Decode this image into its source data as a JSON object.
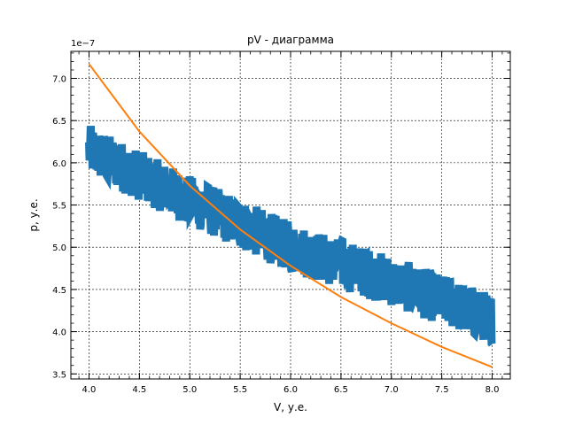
{
  "chart_data": {
    "type": "line",
    "title": "pV - диаграмма",
    "xlabel": "V, у.е.",
    "ylabel": "p, у.е.",
    "y_offset_label": "1e−7",
    "xlim": [
      3.82,
      8.18
    ],
    "ylim": [
      3.44,
      7.32
    ],
    "x_ticks": [
      4.0,
      4.5,
      5.0,
      5.5,
      6.0,
      6.5,
      7.0,
      7.5,
      8.0
    ],
    "x_tick_labels": [
      "4.0",
      "4.5",
      "5.0",
      "5.5",
      "6.0",
      "6.5",
      "7.0",
      "7.5",
      "8.0"
    ],
    "y_ticks": [
      3.5,
      4.0,
      4.5,
      5.0,
      5.5,
      6.0,
      6.5,
      7.0
    ],
    "y_tick_labels": [
      "3.5",
      "4.0",
      "4.5",
      "5.0",
      "5.5",
      "6.0",
      "6.5",
      "7.0"
    ],
    "grid": true,
    "colors": {
      "data": "#1f77b4",
      "fit": "#ff7f0e"
    },
    "series": [
      {
        "kind": "noisy-data",
        "trend": [
          [
            4.0,
            6.15
          ],
          [
            5.0,
            5.55
          ],
          [
            6.0,
            5.0
          ],
          [
            7.0,
            4.6
          ],
          [
            8.0,
            4.15
          ]
        ],
        "noise_amplitude": 0.3
      },
      {
        "kind": "fit",
        "x": [
          4.0,
          4.5,
          5.0,
          5.5,
          6.0,
          6.5,
          7.0,
          7.5,
          8.0
        ],
        "y": [
          7.17,
          6.37,
          5.73,
          5.21,
          4.78,
          4.41,
          4.1,
          3.82,
          3.58
        ]
      }
    ]
  }
}
